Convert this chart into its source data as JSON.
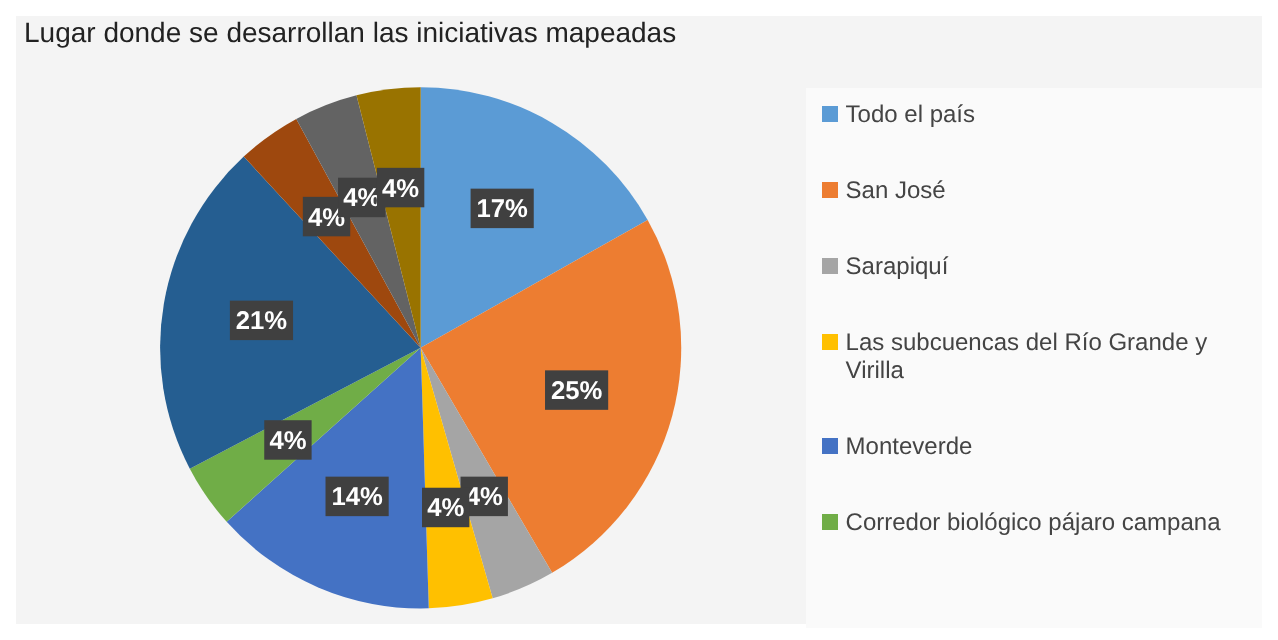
{
  "chart_data": {
    "type": "pie",
    "title": "Lugar donde se desarrollan las iniciativas mapeadas",
    "categories": [
      "Todo el país",
      "San José",
      "Sarapiquí",
      "Las subcuencas del Río Grande y Virilla",
      "Monteverde",
      "Corredor biológico pájaro campana",
      null,
      null,
      null,
      null
    ],
    "values": [
      17,
      25,
      4,
      4,
      14,
      4,
      21,
      4,
      4,
      4
    ],
    "colors": [
      "#5b9bd5",
      "#ed7d31",
      "#a5a5a5",
      "#ffc000",
      "#4472c4",
      "#70ad47",
      "#255e91",
      "#9e480e",
      "#636363",
      "#997300"
    ],
    "value_labels": [
      "17%",
      "25%",
      "4%",
      "4%",
      "14%",
      "4%",
      "21%",
      "4%",
      "4%",
      "4%"
    ],
    "legend": "right"
  }
}
